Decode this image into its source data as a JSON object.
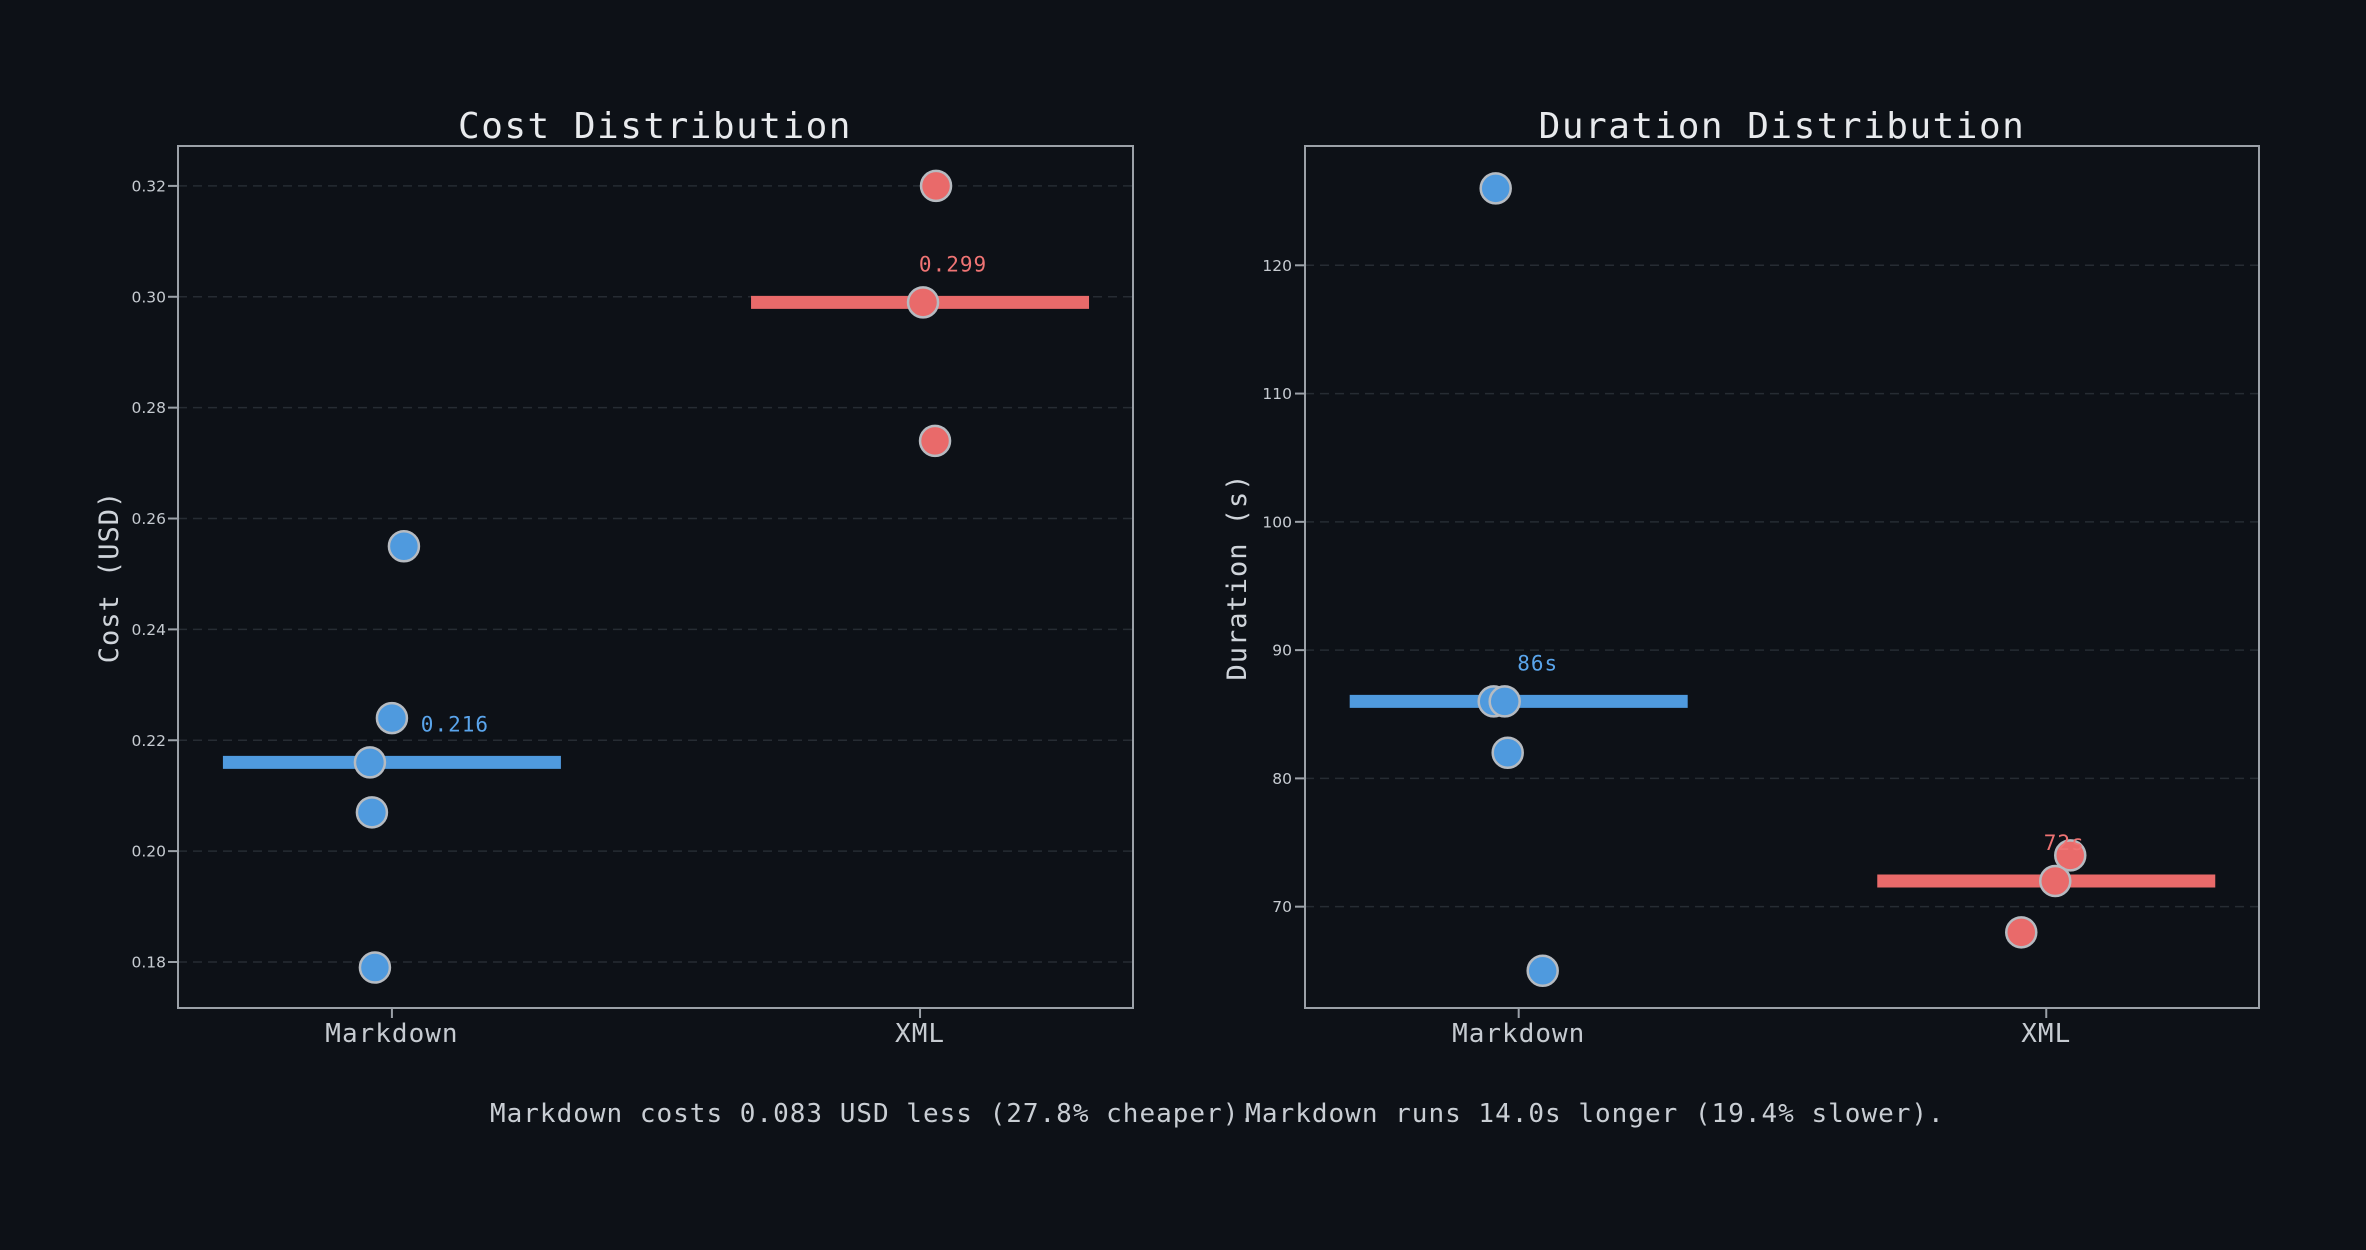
{
  "figure": {
    "background": "#0d1117",
    "captions": [
      {
        "text": "Markdown costs 0.083 USD less (27.8% cheaper)."
      },
      {
        "text": "Markdown runs 14.0s longer (19.4% slower)."
      }
    ]
  },
  "chart_data": [
    {
      "type": "scatter",
      "title": "Cost Distribution",
      "ylabel": "Cost (USD)",
      "xlabel": "",
      "categories": [
        "Markdown",
        "XML"
      ],
      "ylim": [
        0.1717,
        0.3272
      ],
      "grid": "horizontal-dashed",
      "legend": "none",
      "yticks": [
        {
          "v": 0.18,
          "label": "0.18"
        },
        {
          "v": 0.2,
          "label": "0.20"
        },
        {
          "v": 0.22,
          "label": "0.22"
        },
        {
          "v": 0.24,
          "label": "0.24"
        },
        {
          "v": 0.26,
          "label": "0.26"
        },
        {
          "v": 0.28,
          "label": "0.28"
        },
        {
          "v": 0.3,
          "label": "0.30"
        },
        {
          "v": 0.32,
          "label": "0.32"
        }
      ],
      "series": [
        {
          "name": "Markdown",
          "color": "#4f9ade",
          "label_color": "#5aa5ec",
          "median": 0.216,
          "median_label": "0.216",
          "label_dx": 63,
          "points": [
            {
              "v": 0.255,
              "dx": 12
            },
            {
              "v": 0.224,
              "dx": 0
            },
            {
              "v": 0.216,
              "dx": -22
            },
            {
              "v": 0.207,
              "dx": -20
            },
            {
              "v": 0.179,
              "dx": -17
            }
          ]
        },
        {
          "name": "XML",
          "color": "#e96a6a",
          "label_color": "#ef7474",
          "median": 0.299,
          "median_label": "0.299",
          "label_dx": 33,
          "points": [
            {
              "v": 0.32,
              "dx": 16
            },
            {
              "v": 0.299,
              "dx": 3
            },
            {
              "v": 0.274,
              "dx": 15
            }
          ]
        }
      ]
    },
    {
      "type": "scatter",
      "title": "Duration Distribution",
      "ylabel": "Duration (s)",
      "xlabel": "",
      "categories": [
        "Markdown",
        "XML"
      ],
      "ylim": [
        62.1,
        129.3
      ],
      "grid": "horizontal-dashed",
      "legend": "none",
      "yticks": [
        {
          "v": 70,
          "label": "70"
        },
        {
          "v": 80,
          "label": "80"
        },
        {
          "v": 90,
          "label": "90"
        },
        {
          "v": 100,
          "label": "100"
        },
        {
          "v": 110,
          "label": "110"
        },
        {
          "v": 120,
          "label": "120"
        }
      ],
      "series": [
        {
          "name": "Markdown",
          "color": "#4f9ade",
          "label_color": "#5aa5ec",
          "median": 86,
          "median_label": "86s",
          "label_dx": 19,
          "points": [
            {
              "v": 126,
              "dx": -23
            },
            {
              "v": 86,
              "dx": -25
            },
            {
              "v": 86,
              "dx": -14
            },
            {
              "v": 82,
              "dx": -11
            },
            {
              "v": 65,
              "dx": 24
            }
          ]
        },
        {
          "name": "XML",
          "color": "#e96a6a",
          "label_color": "#ef7474",
          "median": 72,
          "median_label": "72s",
          "label_dx": 18,
          "points": [
            {
              "v": 74,
              "dx": 24
            },
            {
              "v": 72,
              "dx": 9
            },
            {
              "v": 68,
              "dx": -25
            }
          ]
        }
      ]
    }
  ]
}
